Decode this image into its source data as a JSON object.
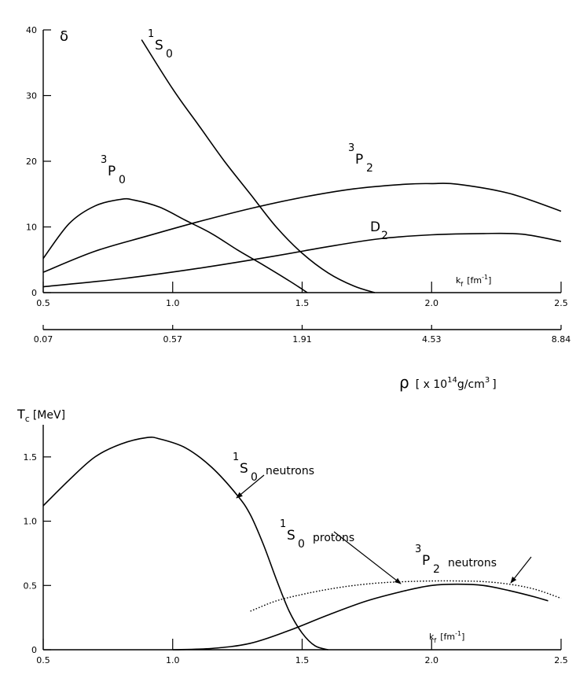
{
  "chart_data": [
    {
      "type": "line",
      "xlim": [
        0.5,
        2.5
      ],
      "ylim": [
        0,
        40
      ],
      "x_ticks": [
        "0.5",
        "1.0",
        "1.5",
        "2.0",
        "2.5"
      ],
      "y_ticks": [
        "0",
        "10",
        "20",
        "30",
        "40"
      ],
      "ylabel": "δ",
      "xlabel": "k",
      "xlabel_sub": "f",
      "xlabel_unit": "[fm",
      "xlabel_unit_sup": "-1",
      "xlabel_unit_end": "]",
      "secondary_axis": {
        "ticks": [
          {
            "k": 0.5,
            "label": "0.07"
          },
          {
            "k": 1.0,
            "label": "0.57"
          },
          {
            "k": 1.5,
            "label": "1.91"
          },
          {
            "k": 2.0,
            "label": "4.53"
          },
          {
            "k": 2.5,
            "label": "8.84"
          }
        ],
        "label_sym": "ρ",
        "label_a": "[ x 10",
        "label_sup_a": "14",
        "label_b": "g/cm",
        "label_sup_b": "3",
        "label_c": "]"
      },
      "series": [
        {
          "name": "1S0",
          "label": {
            "pre": "1",
            "letter": "S",
            "sub": "0"
          },
          "points": [
            [
              0.88,
              38.5
            ],
            [
              1.0,
              31.0
            ],
            [
              1.1,
              25.5
            ],
            [
              1.2,
              20.0
            ],
            [
              1.3,
              15.0
            ],
            [
              1.4,
              10.0
            ],
            [
              1.5,
              6.0
            ],
            [
              1.6,
              3.0
            ],
            [
              1.7,
              1.0
            ],
            [
              1.78,
              0
            ]
          ]
        },
        {
          "name": "3P0",
          "label": {
            "pre": "3",
            "letter": "P",
            "sub": "0"
          },
          "points": [
            [
              0.5,
              5.2
            ],
            [
              0.6,
              10.5
            ],
            [
              0.7,
              13.2
            ],
            [
              0.8,
              14.2
            ],
            [
              0.85,
              14.1
            ],
            [
              0.95,
              13.0
            ],
            [
              1.05,
              11.0
            ],
            [
              1.15,
              9.0
            ],
            [
              1.25,
              6.5
            ],
            [
              1.35,
              4.2
            ],
            [
              1.45,
              1.8
            ],
            [
              1.52,
              0
            ]
          ]
        },
        {
          "name": "3P2",
          "label": {
            "pre": "3",
            "letter": "P",
            "sub": "2"
          },
          "points": [
            [
              0.5,
              3.1
            ],
            [
              0.7,
              6.3
            ],
            [
              0.9,
              8.6
            ],
            [
              1.1,
              10.8
            ],
            [
              1.3,
              12.8
            ],
            [
              1.5,
              14.5
            ],
            [
              1.7,
              15.8
            ],
            [
              1.9,
              16.5
            ],
            [
              2.0,
              16.6
            ],
            [
              2.1,
              16.5
            ],
            [
              2.3,
              15.1
            ],
            [
              2.5,
              12.4
            ]
          ]
        },
        {
          "name": "D2",
          "label": {
            "pre": "",
            "letter": "D",
            "sub": "2"
          },
          "points": [
            [
              0.5,
              0.9
            ],
            [
              0.8,
              2.1
            ],
            [
              1.1,
              3.7
            ],
            [
              1.4,
              5.6
            ],
            [
              1.6,
              7.0
            ],
            [
              1.8,
              8.2
            ],
            [
              2.0,
              8.8
            ],
            [
              2.2,
              9.0
            ],
            [
              2.35,
              8.9
            ],
            [
              2.5,
              7.8
            ]
          ]
        }
      ]
    },
    {
      "type": "line",
      "xlim": [
        0.5,
        2.5
      ],
      "ylim": [
        0,
        1.75
      ],
      "x_ticks": [
        "0.5",
        "1.0",
        "1.5",
        "2.0",
        "2.5"
      ],
      "y_ticks": [
        "0",
        "0.5",
        "1.0",
        "1.5"
      ],
      "ylabel": "T",
      "ylabel_sub": "c",
      "ylabel_unit": "[MeV]",
      "xlabel": "k",
      "xlabel_sub": "f",
      "xlabel_unit": "[fm",
      "xlabel_unit_sup": "-1",
      "xlabel_unit_end": "]",
      "series": [
        {
          "name": "1S0 neutrons",
          "label": {
            "pre": "1",
            "letter": "S",
            "sub": "0",
            "text": "neutrons"
          },
          "style": "solid",
          "points": [
            [
              0.5,
              1.12
            ],
            [
              0.6,
              1.32
            ],
            [
              0.7,
              1.5
            ],
            [
              0.8,
              1.6
            ],
            [
              0.9,
              1.65
            ],
            [
              0.95,
              1.64
            ],
            [
              1.05,
              1.57
            ],
            [
              1.15,
              1.42
            ],
            [
              1.25,
              1.2
            ],
            [
              1.3,
              1.05
            ],
            [
              1.35,
              0.82
            ],
            [
              1.4,
              0.55
            ],
            [
              1.45,
              0.3
            ],
            [
              1.5,
              0.13
            ],
            [
              1.55,
              0.03
            ],
            [
              1.6,
              0.0
            ]
          ]
        },
        {
          "name": "1S0 protons",
          "label": {
            "pre": "1",
            "letter": "S",
            "sub": "0",
            "text": "protons"
          },
          "style": "dotted",
          "points": [
            [
              1.3,
              0.3
            ],
            [
              1.4,
              0.38
            ],
            [
              1.5,
              0.43
            ],
            [
              1.6,
              0.47
            ],
            [
              1.7,
              0.5
            ],
            [
              1.8,
              0.52
            ],
            [
              1.9,
              0.53
            ],
            [
              2.0,
              0.535
            ],
            [
              2.1,
              0.535
            ],
            [
              2.2,
              0.53
            ],
            [
              2.3,
              0.51
            ],
            [
              2.4,
              0.47
            ],
            [
              2.5,
              0.4
            ]
          ]
        },
        {
          "name": "3P2 neutrons",
          "label": {
            "pre": "3",
            "letter": "P",
            "sub": "2",
            "text": "neutrons"
          },
          "style": "solid",
          "points": [
            [
              1.0,
              0.0
            ],
            [
              1.15,
              0.01
            ],
            [
              1.3,
              0.05
            ],
            [
              1.45,
              0.15
            ],
            [
              1.6,
              0.27
            ],
            [
              1.75,
              0.38
            ],
            [
              1.9,
              0.46
            ],
            [
              2.0,
              0.5
            ],
            [
              2.1,
              0.51
            ],
            [
              2.2,
              0.5
            ],
            [
              2.3,
              0.46
            ],
            [
              2.4,
              0.41
            ],
            [
              2.45,
              0.38
            ]
          ]
        }
      ]
    }
  ]
}
